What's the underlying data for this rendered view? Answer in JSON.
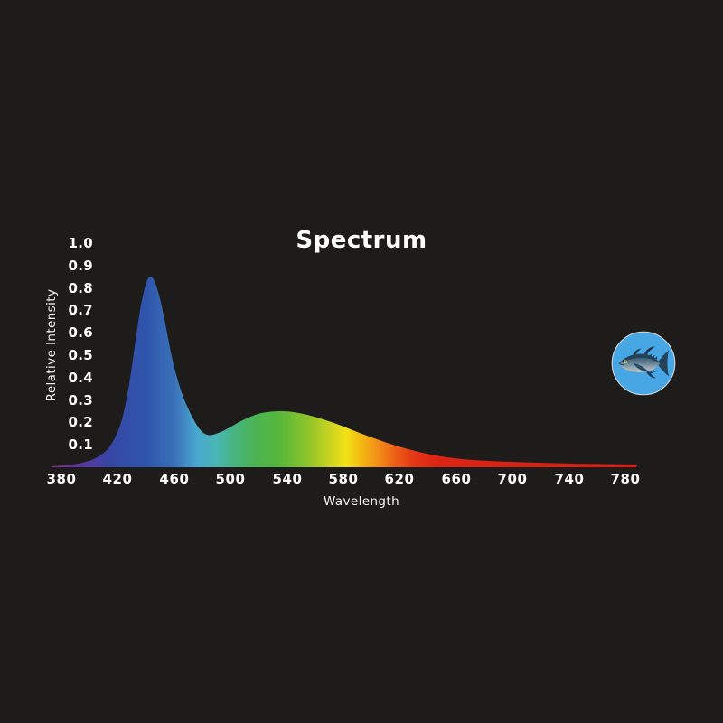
{
  "page": {
    "background_color": "#1e1c1b",
    "text_color": "#ffffff"
  },
  "chart": {
    "title": "Spectrum",
    "xlabel": "Wavelength",
    "ylabel": "Relative Intensity"
  },
  "chart_data": {
    "type": "area",
    "title": "Spectrum",
    "xlabel": "Wavelength",
    "ylabel": "Relative Intensity",
    "xlim": [
      373,
      788
    ],
    "ylim": [
      0,
      1.05
    ],
    "grid": false,
    "legend": false,
    "series_name": "light-spectrum-relative-intensity",
    "x_ticks": [
      380,
      420,
      460,
      500,
      540,
      580,
      620,
      660,
      700,
      740,
      780
    ],
    "x_tick_labels": [
      "380",
      "420",
      "460",
      "500",
      "540",
      "580",
      "620",
      "660",
      "700",
      "740",
      "780"
    ],
    "y_ticks": [
      1.0,
      0.9,
      0.8,
      0.7,
      0.6,
      0.5,
      0.4,
      0.3,
      0.2,
      0.1
    ],
    "y_tick_labels": [
      "1.0",
      "0.9",
      "0.8",
      "0.7",
      "0.6",
      "0.5",
      "0.4",
      "0.3",
      "0.2",
      "0.1"
    ],
    "peaks": [
      {
        "x": 443,
        "y": 0.85,
        "note": "narrow blue peak"
      },
      {
        "x": 535,
        "y": 0.25,
        "note": "broad green-yellow hump"
      }
    ],
    "x": [
      373,
      378,
      383,
      390,
      396,
      402,
      408,
      414,
      420,
      424,
      428,
      432,
      436,
      440,
      443,
      446,
      450,
      454,
      458,
      462,
      466,
      470,
      474,
      478,
      482,
      486,
      490,
      495,
      500,
      505,
      510,
      515,
      520,
      527,
      535,
      542,
      550,
      558,
      566,
      574,
      582,
      590,
      598,
      606,
      614,
      622,
      630,
      638,
      646,
      654,
      662,
      670,
      680,
      690,
      700,
      712,
      724,
      736,
      750,
      764,
      776,
      788
    ],
    "y": [
      0.004,
      0.006,
      0.009,
      0.014,
      0.022,
      0.034,
      0.055,
      0.09,
      0.16,
      0.24,
      0.37,
      0.54,
      0.71,
      0.82,
      0.85,
      0.83,
      0.75,
      0.63,
      0.5,
      0.4,
      0.32,
      0.26,
      0.21,
      0.17,
      0.148,
      0.143,
      0.15,
      0.163,
      0.18,
      0.198,
      0.214,
      0.228,
      0.239,
      0.247,
      0.25,
      0.248,
      0.24,
      0.228,
      0.213,
      0.196,
      0.177,
      0.157,
      0.138,
      0.12,
      0.103,
      0.088,
      0.074,
      0.062,
      0.052,
      0.044,
      0.038,
      0.033,
      0.029,
      0.026,
      0.024,
      0.021,
      0.019,
      0.017,
      0.015,
      0.014,
      0.013,
      0.012
    ],
    "gradient_stops": [
      {
        "wavelength": 373,
        "color": "#822f92"
      },
      {
        "wavelength": 395,
        "color": "#5636a0"
      },
      {
        "wavelength": 415,
        "color": "#3647a6"
      },
      {
        "wavelength": 440,
        "color": "#2e55ab"
      },
      {
        "wavelength": 460,
        "color": "#3a70b8"
      },
      {
        "wavelength": 476,
        "color": "#49a8d2"
      },
      {
        "wavelength": 490,
        "color": "#49b7b4"
      },
      {
        "wavelength": 503,
        "color": "#47b47f"
      },
      {
        "wavelength": 516,
        "color": "#4bb356"
      },
      {
        "wavelength": 532,
        "color": "#52b63c"
      },
      {
        "wavelength": 552,
        "color": "#85c22e"
      },
      {
        "wavelength": 570,
        "color": "#c8d321"
      },
      {
        "wavelength": 582,
        "color": "#f2e216"
      },
      {
        "wavelength": 594,
        "color": "#f4b414"
      },
      {
        "wavelength": 605,
        "color": "#f18d17"
      },
      {
        "wavelength": 617,
        "color": "#ec5e16"
      },
      {
        "wavelength": 630,
        "color": "#e33715"
      },
      {
        "wavelength": 648,
        "color": "#dc2413"
      },
      {
        "wavelength": 788,
        "color": "#d41f12"
      }
    ]
  },
  "badge": {
    "icon": "tuna-fish-icon",
    "circle_color": "#47a7e4",
    "ring_color": "#dcdcdc",
    "fish_back_color": "#24425a",
    "fish_body_color": "#5b7a8e",
    "fish_belly_color": "#9db1ba",
    "fish_fin_color": "#1d3a52",
    "fish_eye_color": "#f2c94e"
  }
}
